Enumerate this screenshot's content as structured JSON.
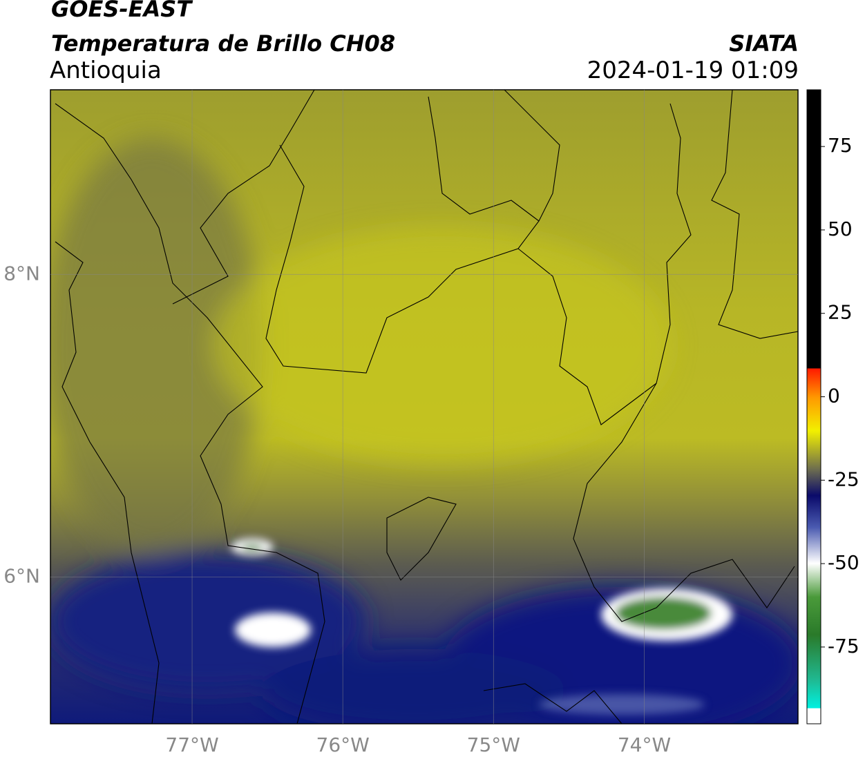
{
  "header": {
    "satellite": "GOES-EAST",
    "product": "Temperatura de Brillo CH08",
    "agency": "SIATA",
    "region": "Antioquia",
    "datetime": "2024-01-19 01:09"
  },
  "map": {
    "lonlim": [
      -77.94,
      -72.98
    ],
    "latlim": [
      5.03,
      9.22
    ],
    "lonticks": [
      {
        "value": -77,
        "label": "77°W"
      },
      {
        "value": -76,
        "label": "76°W"
      },
      {
        "value": -75,
        "label": "75°W"
      },
      {
        "value": -74,
        "label": "74°W"
      }
    ],
    "latticks": [
      {
        "value": 8,
        "label": "8°N"
      },
      {
        "value": 6,
        "label": "6°N"
      }
    ]
  },
  "colorbar": {
    "range": [
      -98,
      92
    ],
    "ticks": [
      75,
      50,
      25,
      0,
      -25,
      -50,
      -75
    ]
  }
}
